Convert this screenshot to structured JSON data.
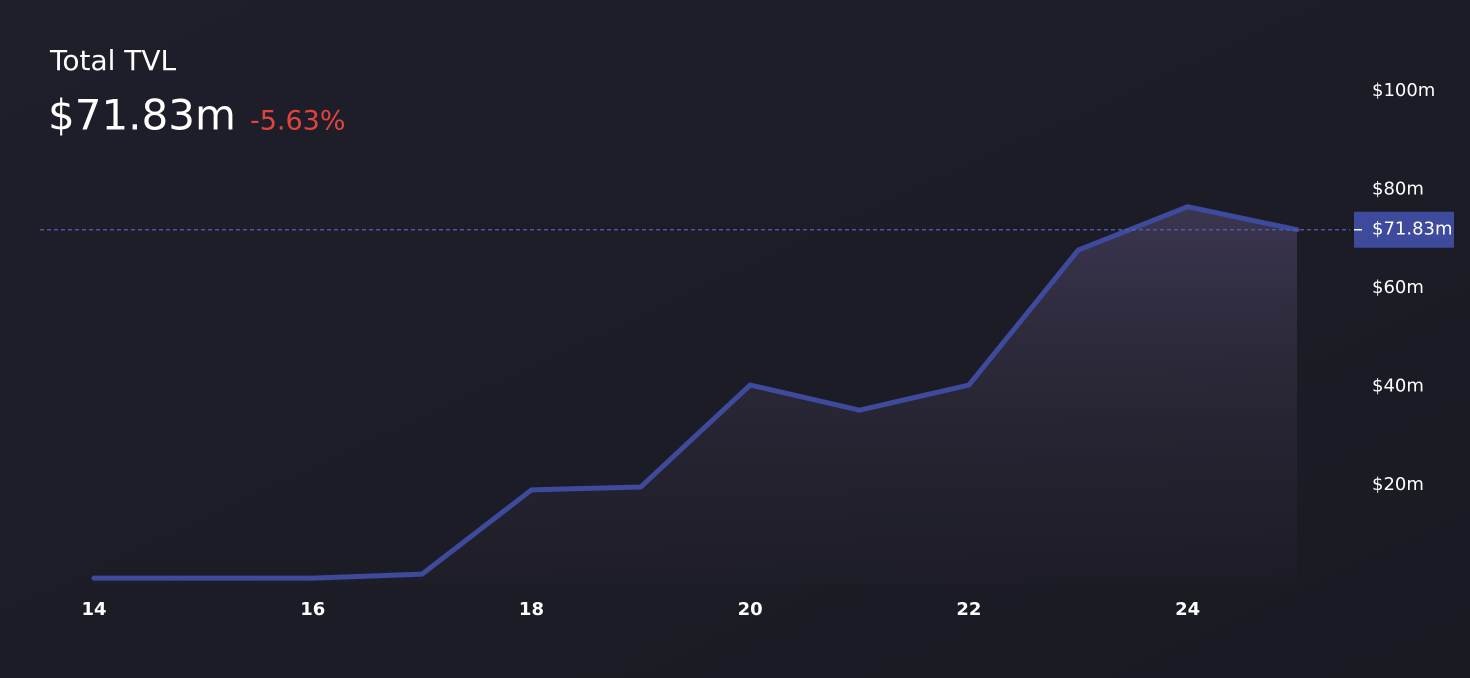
{
  "chart_data": {
    "type": "area",
    "title": "Total TVL",
    "headline": "$71.83m",
    "change": "-5.63%",
    "x": [
      14,
      15,
      16,
      17,
      18,
      19,
      20,
      21,
      22,
      23,
      24,
      25
    ],
    "series": [
      {
        "color": "#3e4a9c",
        "values": [
          1.1,
          1.1,
          1.1,
          1.9,
          19,
          19.6,
          40.3,
          35.2,
          40.3,
          67.7,
          76.5,
          71.83
        ]
      }
    ],
    "xlim": [
      14,
      25
    ],
    "xticks": [
      14,
      16,
      18,
      20,
      22,
      24
    ],
    "ylim": [
      0,
      100
    ],
    "yticks": [
      {
        "value": 20,
        "label": "$20m"
      },
      {
        "value": 40,
        "label": "$40m"
      },
      {
        "value": 60,
        "label": "$60m"
      },
      {
        "value": 80,
        "label": "$80m"
      },
      {
        "value": 100,
        "label": "$100m"
      }
    ]
  }
}
